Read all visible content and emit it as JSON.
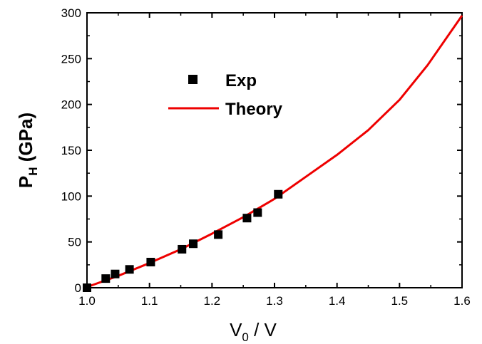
{
  "chart_data": {
    "type": "scatter",
    "xlabel": {
      "main": "V",
      "sub": "0",
      "rest": " / V"
    },
    "ylabel": {
      "main": "P",
      "sub": "H",
      "rest": " (GPa)"
    },
    "xlim": [
      1.0,
      1.6
    ],
    "ylim": [
      0,
      300
    ],
    "xticks": [
      "1.0",
      "1.1",
      "1.2",
      "1.3",
      "1.4",
      "1.5",
      "1.6"
    ],
    "yticks": [
      "0",
      "50",
      "100",
      "150",
      "200",
      "250",
      "300"
    ],
    "grid": false,
    "legend_position": "upper-left",
    "series": [
      {
        "name": "Exp",
        "kind": "scatter",
        "marker": "square",
        "color": "#000000",
        "points": [
          [
            1.0,
            0
          ],
          [
            1.03,
            10
          ],
          [
            1.045,
            15
          ],
          [
            1.068,
            20
          ],
          [
            1.102,
            28
          ],
          [
            1.152,
            42
          ],
          [
            1.17,
            48
          ],
          [
            1.21,
            58
          ],
          [
            1.256,
            76
          ],
          [
            1.273,
            82
          ],
          [
            1.306,
            102
          ]
        ]
      },
      {
        "name": "Theory",
        "kind": "line",
        "color": "#ee0000",
        "points": [
          [
            1.005,
            2
          ],
          [
            1.05,
            13
          ],
          [
            1.1,
            27
          ],
          [
            1.15,
            42
          ],
          [
            1.2,
            59
          ],
          [
            1.25,
            77
          ],
          [
            1.3,
            97
          ],
          [
            1.35,
            121
          ],
          [
            1.4,
            145
          ],
          [
            1.45,
            172
          ],
          [
            1.5,
            205
          ],
          [
            1.545,
            243
          ],
          [
            1.6,
            297
          ]
        ]
      }
    ]
  }
}
